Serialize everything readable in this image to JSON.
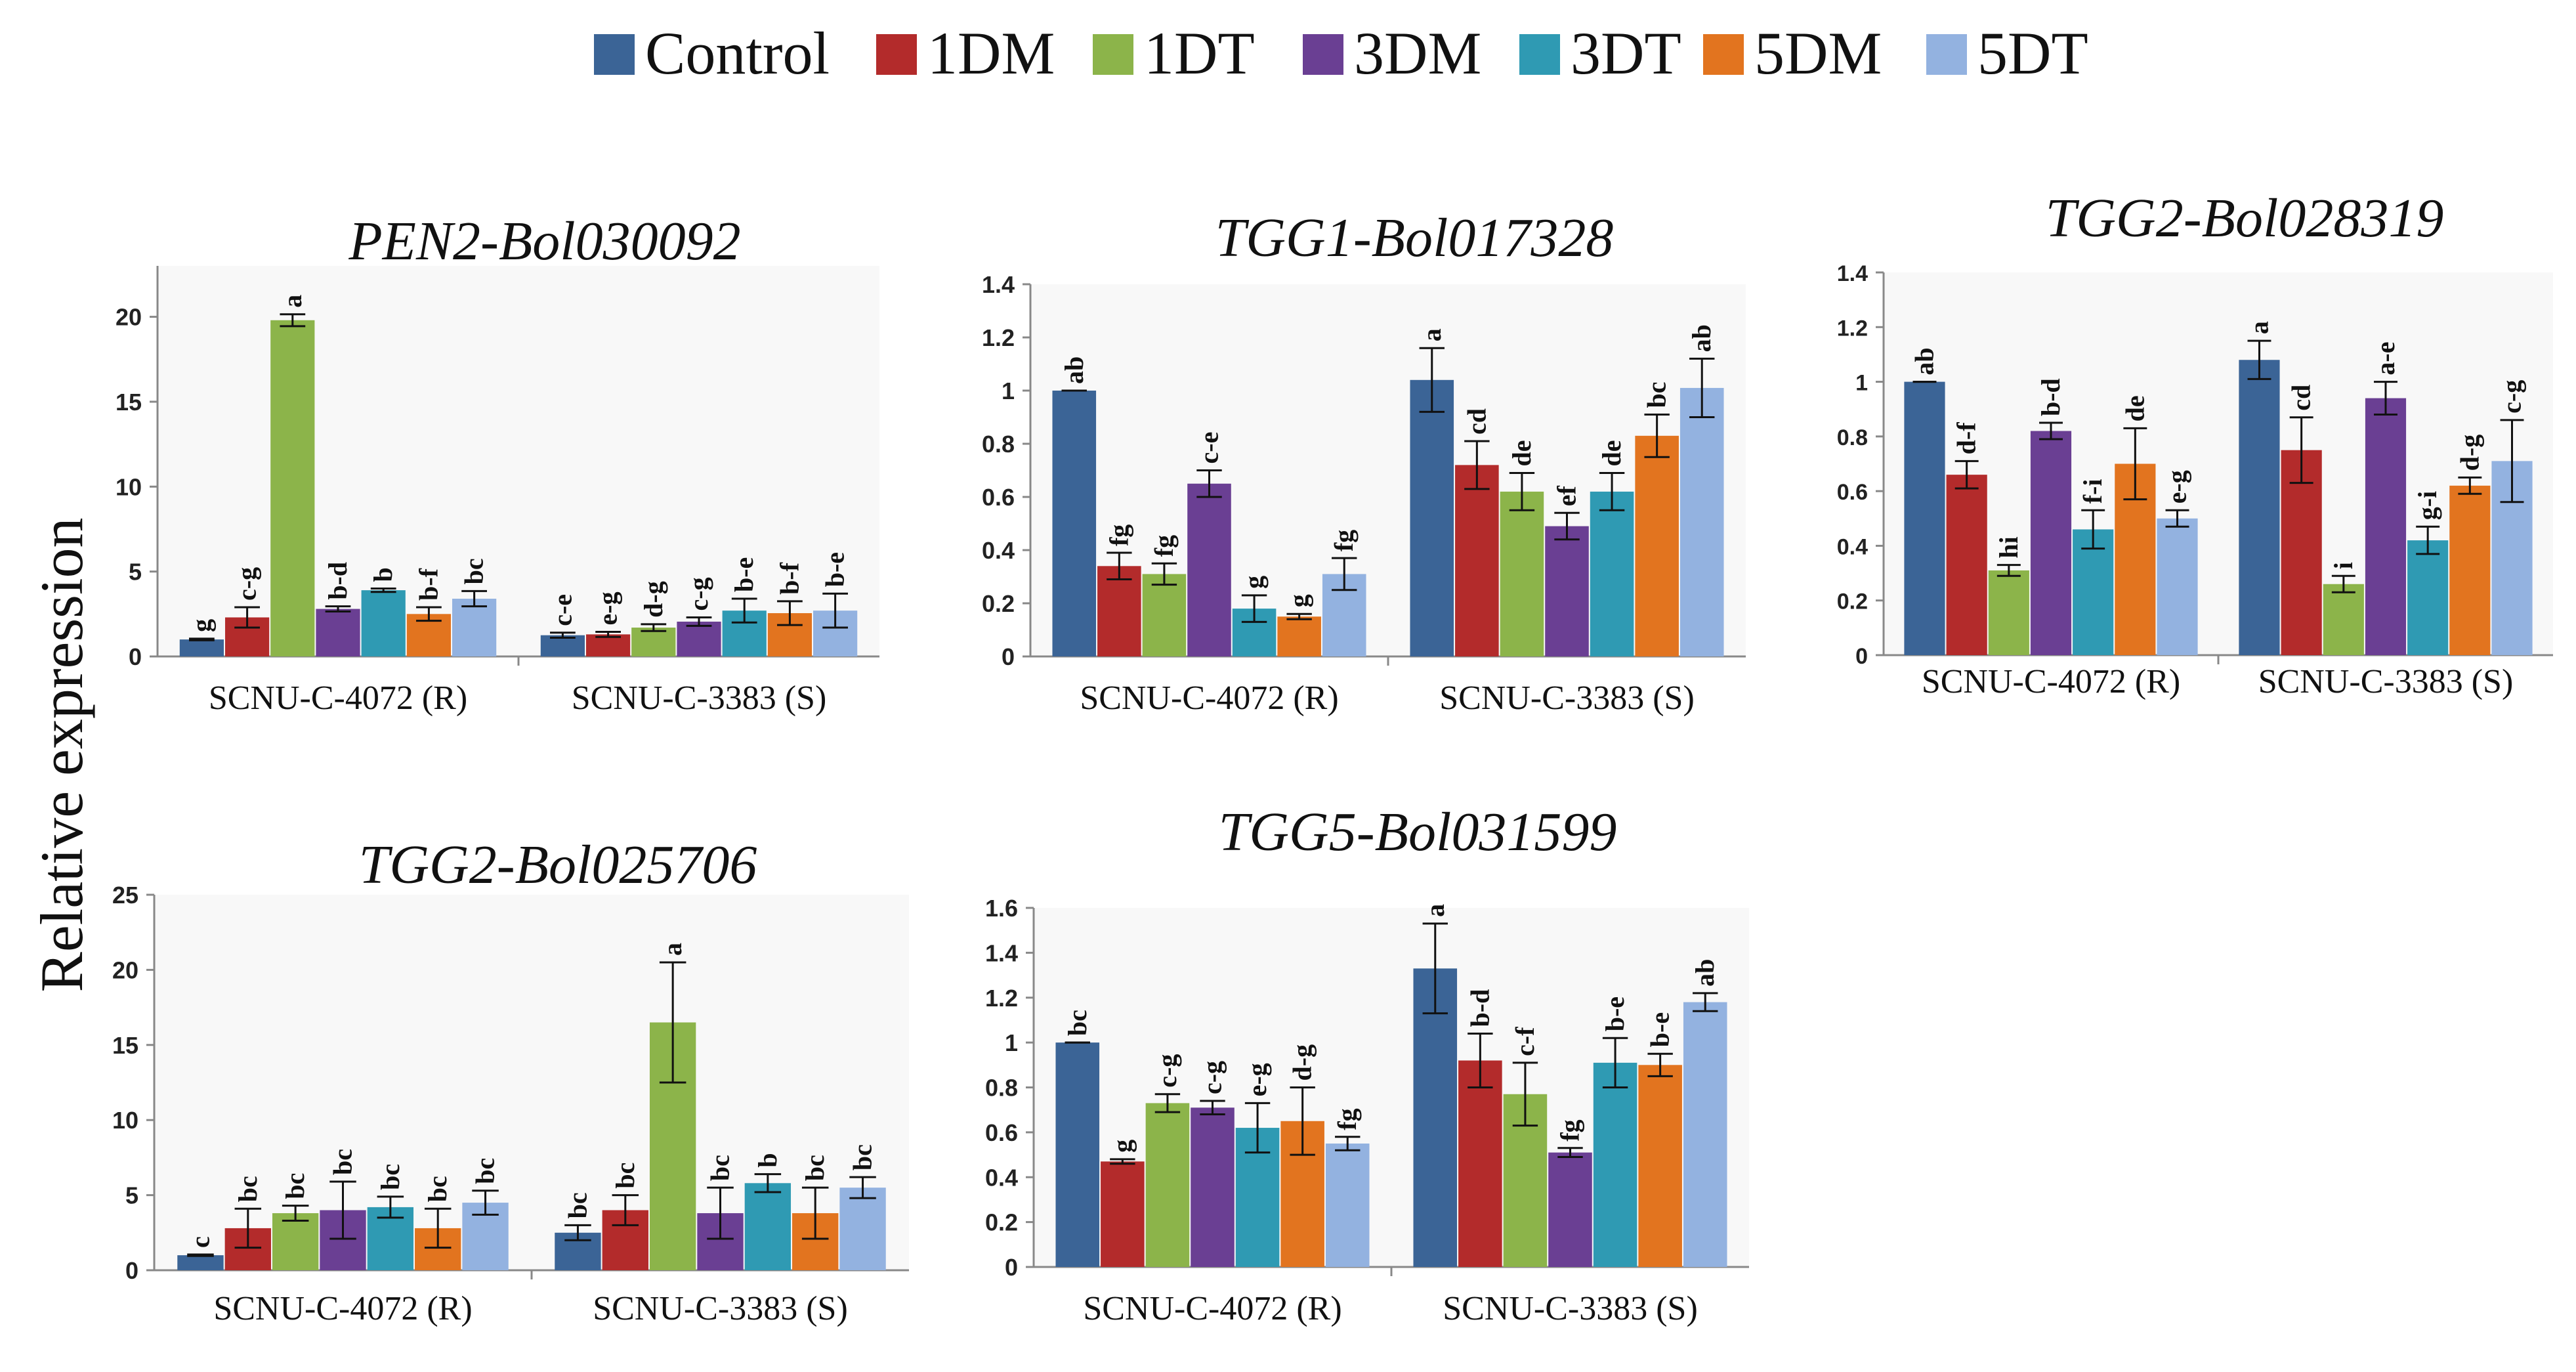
{
  "figure": {
    "ylabel": "Relative expression",
    "legend": [
      "Control",
      "1DM",
      "1DT",
      "3DM",
      "3DT",
      "5DM",
      "5DT"
    ],
    "colors": [
      "#3b6496",
      "#b32b2b",
      "#8cb44a",
      "#6a3f93",
      "#2f9ab3",
      "#e2741f",
      "#93b2e0"
    ]
  },
  "chart_data": [
    {
      "type": "bar",
      "title": "PEN2-Bol030092",
      "categories": [
        "SCNU-C-4072 (R)",
        "SCNU-C-3383 (S)"
      ],
      "ylim": [
        0,
        23
      ],
      "yticks": [
        0,
        5,
        10,
        15,
        20
      ],
      "ytick_labels": [
        "0",
        "5",
        "10",
        "15",
        "20"
      ],
      "series": [
        {
          "name": "Control",
          "values": [
            1.0,
            1.25
          ],
          "errors": [
            0.05,
            0.15
          ],
          "labels": [
            "g",
            "c-e"
          ]
        },
        {
          "name": "1DM",
          "values": [
            2.3,
            1.3
          ],
          "errors": [
            0.6,
            0.15
          ],
          "labels": [
            "c-g",
            "e-g"
          ]
        },
        {
          "name": "1DT",
          "values": [
            19.8,
            1.7
          ],
          "errors": [
            0.35,
            0.2
          ],
          "labels": [
            "a",
            "d-g"
          ]
        },
        {
          "name": "3DM",
          "values": [
            2.8,
            2.05
          ],
          "errors": [
            0.15,
            0.25
          ],
          "labels": [
            "b-d",
            "c-g"
          ]
        },
        {
          "name": "3DT",
          "values": [
            3.9,
            2.7
          ],
          "errors": [
            0.1,
            0.7
          ],
          "labels": [
            "b",
            "b-e"
          ]
        },
        {
          "name": "5DM",
          "values": [
            2.5,
            2.55
          ],
          "errors": [
            0.4,
            0.7
          ],
          "labels": [
            "b-f",
            "b-f"
          ]
        },
        {
          "name": "5DT",
          "values": [
            3.4,
            2.7
          ],
          "errors": [
            0.45,
            1.0
          ],
          "labels": [
            "bc",
            "b-e"
          ]
        }
      ]
    },
    {
      "type": "bar",
      "title": "TGG1-Bol017328",
      "categories": [
        "SCNU-C-4072 (R)",
        "SCNU-C-3383 (S)"
      ],
      "ylim": [
        0,
        1.4
      ],
      "yticks": [
        0,
        0.2,
        0.4,
        0.6,
        0.8,
        1,
        1.2,
        1.4
      ],
      "ytick_labels": [
        "0",
        "0.2",
        "0.4",
        "0.6",
        "0.8",
        "1",
        "1.2",
        "1.4"
      ],
      "series": [
        {
          "name": "Control",
          "values": [
            1.0,
            1.04
          ],
          "errors": [
            0.0,
            0.12
          ],
          "labels": [
            "ab",
            "a"
          ]
        },
        {
          "name": "1DM",
          "values": [
            0.34,
            0.72
          ],
          "errors": [
            0.05,
            0.09
          ],
          "labels": [
            "fg",
            "cd"
          ]
        },
        {
          "name": "1DT",
          "values": [
            0.31,
            0.62
          ],
          "errors": [
            0.04,
            0.07
          ],
          "labels": [
            "fg",
            "de"
          ]
        },
        {
          "name": "3DM",
          "values": [
            0.65,
            0.49
          ],
          "errors": [
            0.05,
            0.05
          ],
          "labels": [
            "c-e",
            "ef"
          ]
        },
        {
          "name": "3DT",
          "values": [
            0.18,
            0.62
          ],
          "errors": [
            0.05,
            0.07
          ],
          "labels": [
            "g",
            "de"
          ]
        },
        {
          "name": "5DM",
          "values": [
            0.15,
            0.83
          ],
          "errors": [
            0.01,
            0.08
          ],
          "labels": [
            "g",
            "bc"
          ]
        },
        {
          "name": "5DT",
          "values": [
            0.31,
            1.01
          ],
          "errors": [
            0.06,
            0.11
          ],
          "labels": [
            "fg",
            "ab"
          ]
        }
      ]
    },
    {
      "type": "bar",
      "title": "TGG2-Bol028319",
      "categories": [
        "SCNU-C-4072 (R)",
        "SCNU-C-3383 (S)"
      ],
      "ylim": [
        0,
        1.4
      ],
      "yticks": [
        0,
        0.2,
        0.4,
        0.6,
        0.8,
        1,
        1.2,
        1.4
      ],
      "ytick_labels": [
        "0",
        "0.2",
        "0.4",
        "0.6",
        "0.8",
        "1",
        "1.2",
        "1.4"
      ],
      "series": [
        {
          "name": "Control",
          "values": [
            1.0,
            1.08
          ],
          "errors": [
            0.0,
            0.07
          ],
          "labels": [
            "ab",
            "a"
          ]
        },
        {
          "name": "1DM",
          "values": [
            0.66,
            0.75
          ],
          "errors": [
            0.05,
            0.12
          ],
          "labels": [
            "d-f",
            "cd"
          ]
        },
        {
          "name": "1DT",
          "values": [
            0.31,
            0.26
          ],
          "errors": [
            0.02,
            0.03
          ],
          "labels": [
            "hi",
            "i"
          ]
        },
        {
          "name": "3DM",
          "values": [
            0.82,
            0.94
          ],
          "errors": [
            0.03,
            0.06
          ],
          "labels": [
            "b-d",
            "a-e"
          ]
        },
        {
          "name": "3DT",
          "values": [
            0.46,
            0.42
          ],
          "errors": [
            0.07,
            0.05
          ],
          "labels": [
            "f-i",
            "g-i"
          ]
        },
        {
          "name": "5DM",
          "values": [
            0.7,
            0.62
          ],
          "errors": [
            0.13,
            0.03
          ],
          "labels": [
            "de",
            "d-g"
          ]
        },
        {
          "name": "5DT",
          "values": [
            0.5,
            0.71
          ],
          "errors": [
            0.03,
            0.15
          ],
          "labels": [
            "e-g",
            "c-g"
          ]
        }
      ]
    },
    {
      "type": "bar",
      "title": "TGG2-Bol025706",
      "categories": [
        "SCNU-C-4072 (R)",
        "SCNU-C-3383 (S)"
      ],
      "ylim": [
        0,
        25
      ],
      "yticks": [
        0,
        5,
        10,
        15,
        20,
        25
      ],
      "ytick_labels": [
        "0",
        "5",
        "10",
        "15",
        "20",
        "25"
      ],
      "series": [
        {
          "name": "Control",
          "values": [
            1.0,
            2.5
          ],
          "errors": [
            0.05,
            0.5
          ],
          "labels": [
            "c",
            "bc"
          ]
        },
        {
          "name": "1DM",
          "values": [
            2.8,
            4.0
          ],
          "errors": [
            1.3,
            1.0
          ],
          "labels": [
            "bc",
            "bc"
          ]
        },
        {
          "name": "1DT",
          "values": [
            3.8,
            16.5
          ],
          "errors": [
            0.5,
            4.0
          ],
          "labels": [
            "bc",
            "a"
          ]
        },
        {
          "name": "3DM",
          "values": [
            4.0,
            3.8
          ],
          "errors": [
            1.9,
            1.7
          ],
          "labels": [
            "bc",
            "bc"
          ]
        },
        {
          "name": "3DT",
          "values": [
            4.2,
            5.8
          ],
          "errors": [
            0.7,
            0.6
          ],
          "labels": [
            "bc",
            "b"
          ]
        },
        {
          "name": "5DM",
          "values": [
            2.8,
            3.8
          ],
          "errors": [
            1.3,
            1.7
          ],
          "labels": [
            "bc",
            "bc"
          ]
        },
        {
          "name": "5DT",
          "values": [
            4.5,
            5.5
          ],
          "errors": [
            0.8,
            0.7
          ],
          "labels": [
            "bc",
            "bc"
          ]
        }
      ]
    },
    {
      "type": "bar",
      "title": "TGG5-Bol031599",
      "categories": [
        "SCNU-C-4072 (R)",
        "SCNU-C-3383 (S)"
      ],
      "ylim": [
        0,
        1.6
      ],
      "yticks": [
        0,
        0.2,
        0.4,
        0.6,
        0.8,
        1,
        1.2,
        1.4,
        1.6
      ],
      "ytick_labels": [
        "0",
        "0.2",
        "0.4",
        "0.6",
        "0.8",
        "1",
        "1.2",
        "1.4",
        "1.6"
      ],
      "series": [
        {
          "name": "Control",
          "values": [
            1.0,
            1.33
          ],
          "errors": [
            0.0,
            0.2
          ],
          "labels": [
            "bc",
            "a"
          ]
        },
        {
          "name": "1DM",
          "values": [
            0.47,
            0.92
          ],
          "errors": [
            0.01,
            0.12
          ],
          "labels": [
            "g",
            "b-d"
          ]
        },
        {
          "name": "1DT",
          "values": [
            0.73,
            0.77
          ],
          "errors": [
            0.04,
            0.14
          ],
          "labels": [
            "c-g",
            "c-f"
          ]
        },
        {
          "name": "3DM",
          "values": [
            0.71,
            0.51
          ],
          "errors": [
            0.03,
            0.02
          ],
          "labels": [
            "c-g",
            "fg"
          ]
        },
        {
          "name": "3DT",
          "values": [
            0.62,
            0.91
          ],
          "errors": [
            0.11,
            0.11
          ],
          "labels": [
            "e-g",
            "b-e"
          ]
        },
        {
          "name": "5DM",
          "values": [
            0.65,
            0.9
          ],
          "errors": [
            0.15,
            0.05
          ],
          "labels": [
            "d-g",
            "b-e"
          ]
        },
        {
          "name": "5DT",
          "values": [
            0.55,
            1.18
          ],
          "errors": [
            0.03,
            0.04
          ],
          "labels": [
            "fg",
            "ab"
          ]
        }
      ]
    }
  ]
}
